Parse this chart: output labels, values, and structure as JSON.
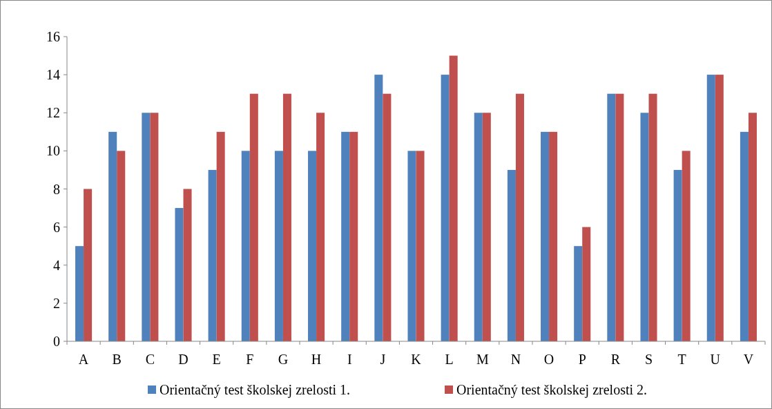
{
  "chart_data": {
    "type": "bar",
    "categories": [
      "A",
      "B",
      "C",
      "D",
      "E",
      "F",
      "G",
      "H",
      "I",
      "J",
      "K",
      "L",
      "M",
      "N",
      "O",
      "P",
      "R",
      "S",
      "T",
      "U",
      "V"
    ],
    "series": [
      {
        "name": "Orientačný test školskej zrelosti 1.",
        "color": "#4f81bd",
        "values": [
          5,
          11,
          12,
          7,
          9,
          10,
          10,
          10,
          11,
          14,
          10,
          14,
          12,
          9,
          11,
          5,
          13,
          12,
          9,
          14,
          11
        ]
      },
      {
        "name": "Orientačný test školskej zrelosti 2.",
        "color": "#c0504d",
        "values": [
          8,
          10,
          12,
          8,
          11,
          13,
          13,
          12,
          11,
          13,
          10,
          15,
          12,
          13,
          11,
          6,
          13,
          13,
          10,
          14,
          12
        ]
      }
    ],
    "ylim": [
      0,
      16
    ],
    "yticks": [
      0,
      2,
      4,
      6,
      8,
      10,
      12,
      14,
      16
    ],
    "grid": false,
    "legend": "bottom"
  }
}
